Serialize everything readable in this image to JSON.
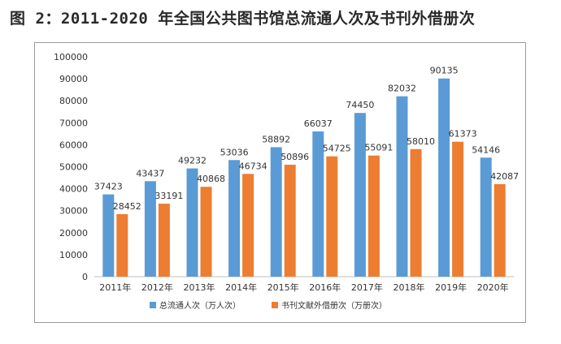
{
  "title": "图 2：2011-2020 年全国公共图书馆总流通人次及书刊外借册次",
  "colors": {
    "series1": "#5b9bd5",
    "series2": "#ed7d31",
    "axis": "#bfbfbf"
  },
  "chart_data": {
    "type": "bar",
    "categories": [
      "2011年",
      "2012年",
      "2013年",
      "2014年",
      "2015年",
      "2016年",
      "2017年",
      "2018年",
      "2019年",
      "2020年"
    ],
    "series": [
      {
        "name": "总流通人次（万人次）",
        "values": [
          37423,
          43437,
          49232,
          53036,
          58892,
          66037,
          74450,
          82032,
          90135,
          54146
        ]
      },
      {
        "name": "书刊文献外借册次（万册次）",
        "values": [
          28452,
          33191,
          40868,
          46734,
          50896,
          54725,
          55091,
          58010,
          61373,
          42087
        ]
      }
    ],
    "ylim": [
      0,
      100000
    ],
    "yticks": [
      0,
      10000,
      20000,
      30000,
      40000,
      50000,
      60000,
      70000,
      80000,
      90000,
      100000
    ],
    "grid": false,
    "legend": "bottom"
  }
}
